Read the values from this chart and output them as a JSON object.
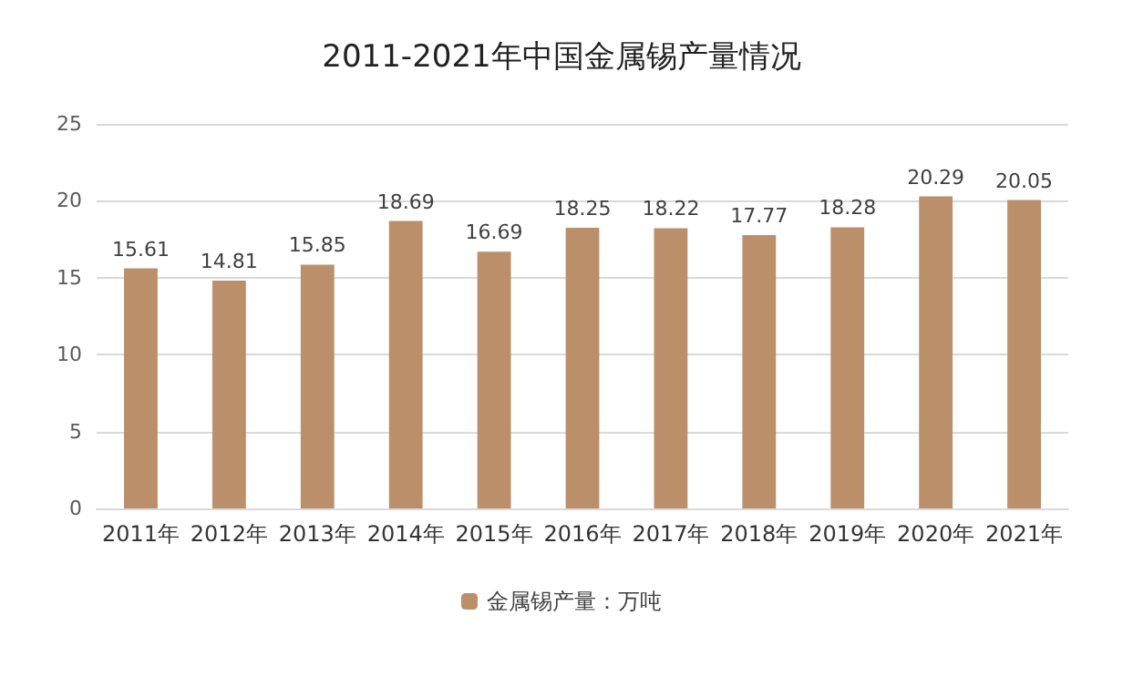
{
  "chart_data": {
    "type": "bar",
    "title": "2011-2021年中国金属锡产量情况",
    "categories": [
      "2011年",
      "2012年",
      "2013年",
      "2014年",
      "2015年",
      "2016年",
      "2017年",
      "2018年",
      "2019年",
      "2020年",
      "2021年"
    ],
    "series": [
      {
        "name": "金属锡产量：万吨",
        "color": "#bb8f6a",
        "values": [
          15.61,
          14.81,
          15.85,
          18.69,
          16.69,
          18.25,
          18.22,
          17.77,
          18.28,
          20.29,
          20.05
        ]
      }
    ],
    "ylim": [
      0,
      25
    ],
    "yticks": [
      0,
      5,
      10,
      15,
      20,
      25
    ],
    "grid": "y",
    "legend": "bottom",
    "data_labels": true
  }
}
